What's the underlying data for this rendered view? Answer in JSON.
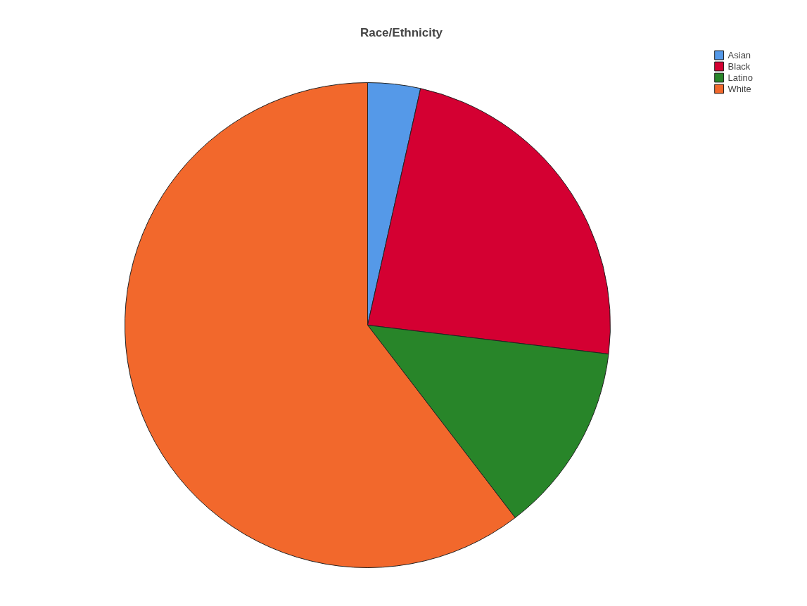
{
  "chart_data": {
    "type": "pie",
    "title": "Race/Ethnicity",
    "categories": [
      "Asian",
      "Black",
      "Latino",
      "White"
    ],
    "values": [
      3.5,
      23.4,
      12.7,
      60.4
    ],
    "colors": [
      "#5599e8",
      "#d40032",
      "#288529",
      "#f2682c"
    ],
    "legend": "top right"
  }
}
